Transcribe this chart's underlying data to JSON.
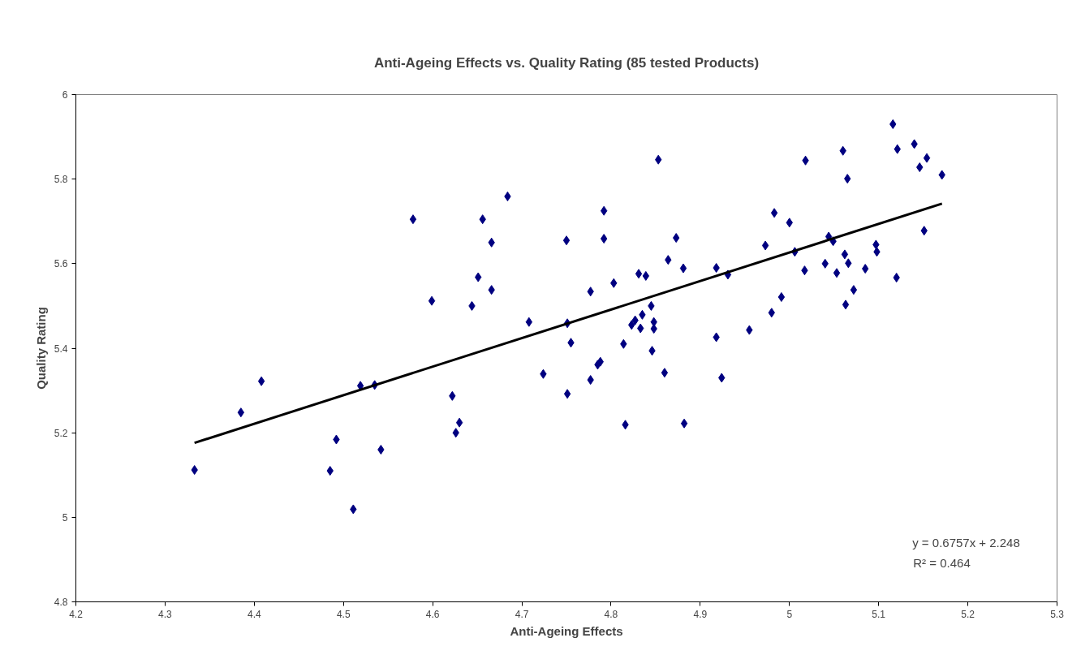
{
  "chart_data": {
    "type": "scatter",
    "title": "Anti-Ageing Effects vs. Quality Rating (85 tested Products)",
    "xlabel": "Anti-Ageing Effects",
    "ylabel": "Quality Rating",
    "xlim": [
      4.2,
      5.3
    ],
    "xticks": [
      4.2,
      4.3,
      4.4,
      4.5,
      4.6,
      4.7,
      4.8,
      4.9,
      5,
      5.1,
      5.2,
      5.3
    ],
    "ylim": [
      4.8,
      6
    ],
    "yticks": [
      4.8,
      5,
      5.2,
      5.4,
      5.6,
      5.8,
      6
    ],
    "grid": false,
    "marker": "diamond",
    "annotations": [
      "y = 0.6757x + 2.248",
      "R² = 0.464"
    ],
    "series": [
      {
        "color": "#000080",
        "x": [
          4.333,
          4.385,
          4.408,
          4.485,
          4.492,
          4.511,
          4.519,
          4.535,
          4.542,
          4.578,
          4.599,
          4.622,
          4.626,
          4.63,
          4.644,
          4.651,
          4.656,
          4.666,
          4.666,
          4.684,
          4.708,
          4.724,
          4.75,
          4.751,
          4.755,
          4.751,
          4.777,
          4.777,
          4.785,
          4.788,
          4.792,
          4.792,
          4.803,
          4.814,
          4.816,
          4.823,
          4.827,
          4.831,
          4.833,
          4.835,
          4.839,
          4.845,
          4.846,
          4.848,
          4.848,
          4.853,
          4.86,
          4.864,
          4.873,
          4.881,
          4.882,
          4.918,
          4.918,
          4.924,
          4.931,
          4.955,
          4.973,
          4.98,
          4.983,
          4.991,
          5.0,
          5.006,
          5.017,
          5.018,
          5.04,
          5.044,
          5.049,
          5.053,
          5.06,
          5.062,
          5.063,
          5.065,
          5.066,
          5.072,
          5.085,
          5.097,
          5.098,
          5.116,
          5.12,
          5.121,
          5.14,
          5.146,
          5.151,
          5.154,
          5.171
        ],
        "values": [
          5.112,
          5.248,
          5.322,
          5.11,
          5.184,
          5.019,
          5.311,
          5.313,
          5.16,
          5.705,
          5.512,
          5.287,
          5.2,
          5.224,
          5.5,
          5.568,
          5.705,
          5.65,
          5.538,
          5.759,
          5.462,
          5.339,
          5.655,
          5.459,
          5.413,
          5.292,
          5.325,
          5.534,
          5.361,
          5.368,
          5.725,
          5.659,
          5.554,
          5.41,
          5.219,
          5.455,
          5.466,
          5.576,
          5.447,
          5.479,
          5.571,
          5.5,
          5.394,
          5.462,
          5.446,
          5.846,
          5.342,
          5.609,
          5.661,
          5.589,
          5.222,
          5.59,
          5.426,
          5.33,
          5.574,
          5.443,
          5.643,
          5.484,
          5.72,
          5.521,
          5.697,
          5.628,
          5.584,
          5.844,
          5.6,
          5.664,
          5.653,
          5.578,
          5.867,
          5.622,
          5.503,
          5.801,
          5.601,
          5.538,
          5.588,
          5.645,
          5.628,
          5.93,
          5.567,
          5.871,
          5.883,
          5.828,
          5.678,
          5.85,
          5.81
        ]
      },
      {
        "type": "line",
        "marker": "none",
        "color": "#000000",
        "x": [
          4.333,
          5.171
        ],
        "values": [
          5.176,
          5.742
        ]
      }
    ]
  }
}
